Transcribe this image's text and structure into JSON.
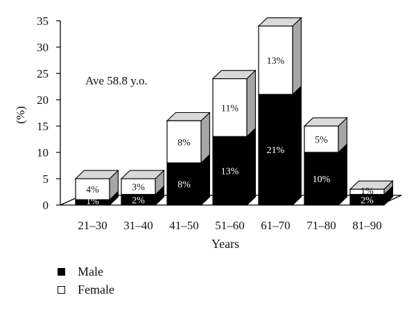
{
  "chart_data": {
    "type": "bar",
    "stacked": true,
    "three_d": true,
    "categories": [
      "21–30",
      "31–40",
      "41–50",
      "51–60",
      "61–70",
      "71–80",
      "81–90"
    ],
    "series": [
      {
        "name": "Male",
        "values": [
          1,
          2,
          8,
          13,
          21,
          10,
          2
        ],
        "labels": [
          "1%",
          "2%",
          "8%",
          "13%",
          "21%",
          "10%",
          "2%"
        ],
        "color": "#000000"
      },
      {
        "name": "Female",
        "values": [
          4,
          3,
          8,
          11,
          13,
          5,
          1
        ],
        "labels": [
          "4%",
          "3%",
          "8%",
          "11%",
          "13%",
          "5%",
          "1%"
        ],
        "color": "#ffffff"
      }
    ],
    "xlabel": "Years",
    "ylabel": "(%)",
    "ylim": [
      0,
      35
    ],
    "yticks": [
      "0",
      "5",
      "10",
      "15",
      "20",
      "25",
      "30",
      "35"
    ],
    "annotation": "Ave 58.8 y.o.",
    "grid": false,
    "legend_position": "bottom-left"
  },
  "legend": {
    "male": "Male",
    "female": "Female"
  },
  "colors": {
    "male": "#000000",
    "female": "#ffffff",
    "side": "#a6a6a6",
    "top": "#d9d9d9"
  }
}
